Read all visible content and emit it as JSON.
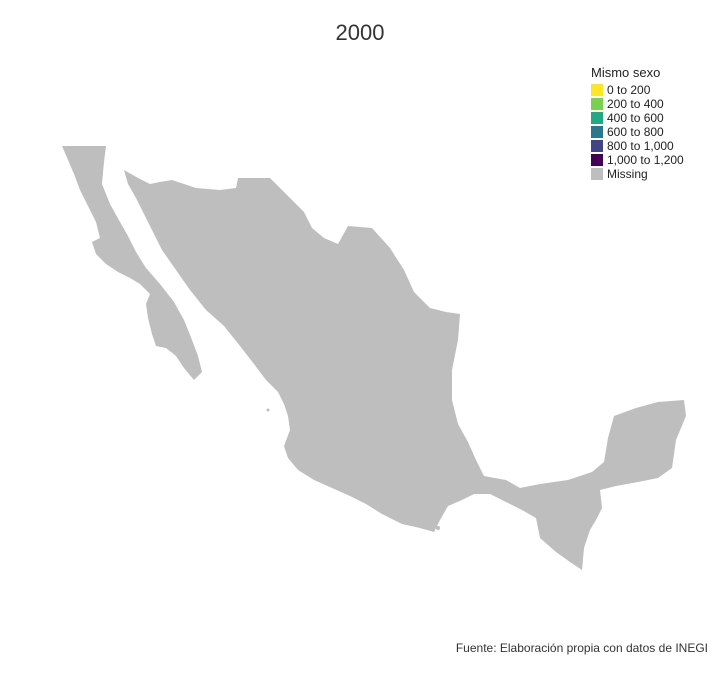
{
  "map": {
    "title": "2000",
    "legend": {
      "title": "Mismo sexo",
      "items": [
        {
          "label": "0 to 200",
          "color": "#FDE725"
        },
        {
          "label": "200 to 400",
          "color": "#7AD151"
        },
        {
          "label": "400 to 600",
          "color": "#22A884"
        },
        {
          "label": "600 to 800",
          "color": "#2A788E"
        },
        {
          "label": "800 to 1,000",
          "color": "#414487"
        },
        {
          "label": "1,000 to 1,200",
          "color": "#440154"
        },
        {
          "label": "Missing",
          "color": "#BEBEBE"
        }
      ]
    },
    "fill_color": "#BEBEBE",
    "caption": "Fuente: Elaboración propia con datos de INEGI"
  }
}
